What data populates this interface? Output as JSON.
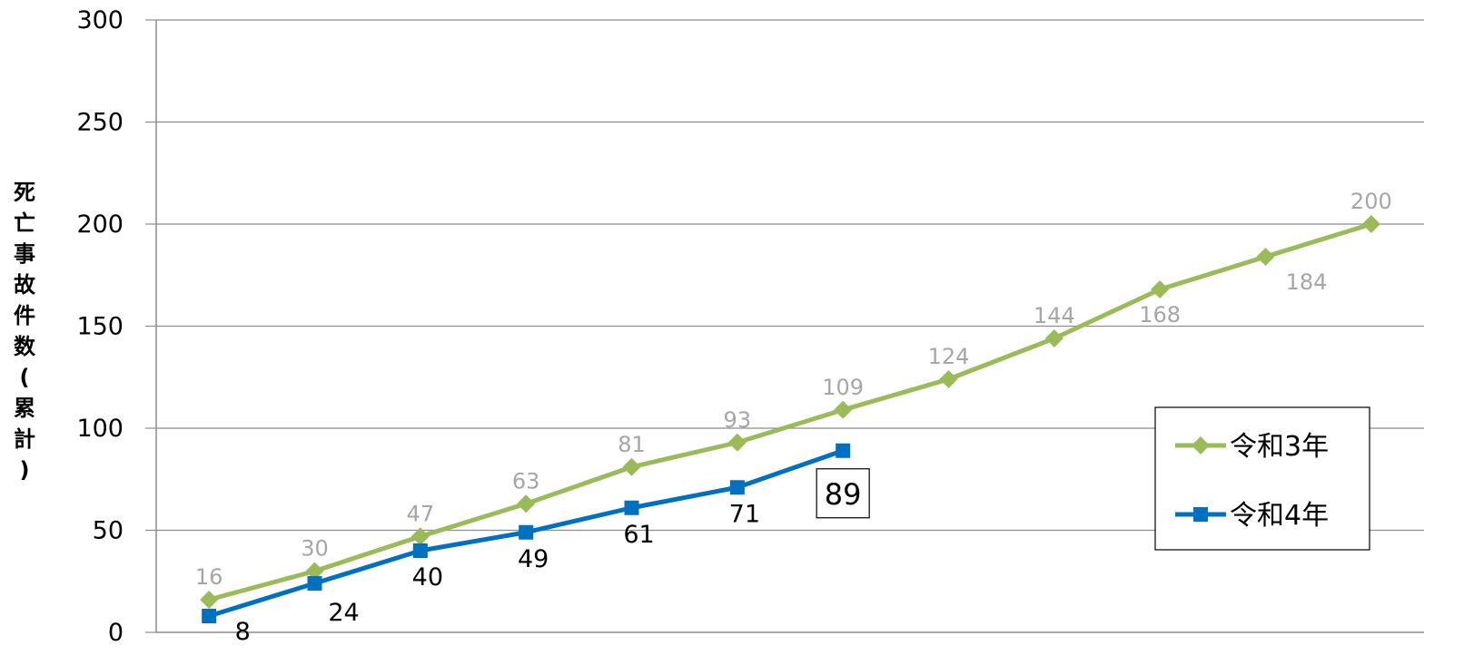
{
  "chart_data": {
    "type": "line",
    "title": "",
    "xlabel": "",
    "ylabel": "死亡事故件数(累計)",
    "ylim": [
      0,
      300
    ],
    "y_ticks": [
      0,
      50,
      100,
      150,
      200,
      250,
      300
    ],
    "grid": true,
    "legend_position": "right",
    "series": [
      {
        "name": "令和3年",
        "color": "#9bbb59",
        "marker": "diamond",
        "label_color": "#a6a6a6",
        "values": [
          16,
          30,
          47,
          63,
          81,
          93,
          109,
          124,
          144,
          168,
          184,
          200
        ]
      },
      {
        "name": "令和4年",
        "color": "#0070c0",
        "marker": "square",
        "label_color": "#000000",
        "values": [
          8,
          24,
          40,
          49,
          61,
          71,
          89
        ]
      }
    ]
  }
}
